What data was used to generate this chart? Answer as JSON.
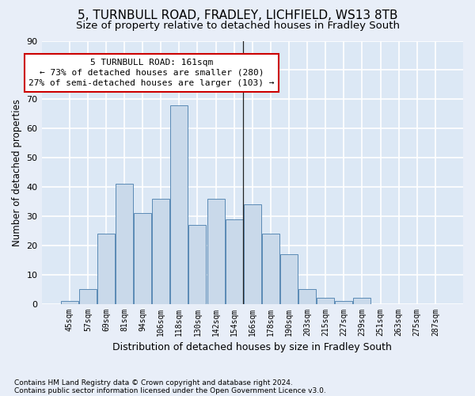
{
  "title1": "5, TURNBULL ROAD, FRADLEY, LICHFIELD, WS13 8TB",
  "title2": "Size of property relative to detached houses in Fradley South",
  "xlabel": "Distribution of detached houses by size in Fradley South",
  "ylabel": "Number of detached properties",
  "footnote1": "Contains HM Land Registry data © Crown copyright and database right 2024.",
  "footnote2": "Contains public sector information licensed under the Open Government Licence v3.0.",
  "bin_labels": [
    "45sqm",
    "57sqm",
    "69sqm",
    "81sqm",
    "94sqm",
    "106sqm",
    "118sqm",
    "130sqm",
    "142sqm",
    "154sqm",
    "166sqm",
    "178sqm",
    "190sqm",
    "203sqm",
    "215sqm",
    "227sqm",
    "239sqm",
    "251sqm",
    "263sqm",
    "275sqm",
    "287sqm"
  ],
  "bar_values": [
    1,
    5,
    24,
    41,
    31,
    36,
    68,
    27,
    36,
    29,
    34,
    24,
    17,
    5,
    2,
    1,
    2,
    0,
    0,
    0,
    0
  ],
  "bar_color": "#c9d9ea",
  "bar_edge_color": "#5a8ab5",
  "plot_bg_color": "#dce8f5",
  "fig_bg_color": "#e8eef8",
  "grid_color": "#ffffff",
  "ylim": [
    0,
    90
  ],
  "yticks": [
    0,
    10,
    20,
    30,
    40,
    50,
    60,
    70,
    80,
    90
  ],
  "annotation_line1": "5 TURNBULL ROAD: 161sqm",
  "annotation_line2": "← 73% of detached houses are smaller (280)",
  "annotation_line3": "27% of semi-detached houses are larger (103) →",
  "annotation_box_color": "#ffffff",
  "annotation_box_edge": "#cc0000",
  "title1_fontsize": 11,
  "title2_fontsize": 9.5,
  "xlabel_fontsize": 9,
  "ylabel_fontsize": 8.5,
  "tick_fontsize": 7,
  "annotation_fontsize": 8,
  "footnote_fontsize": 6.5
}
